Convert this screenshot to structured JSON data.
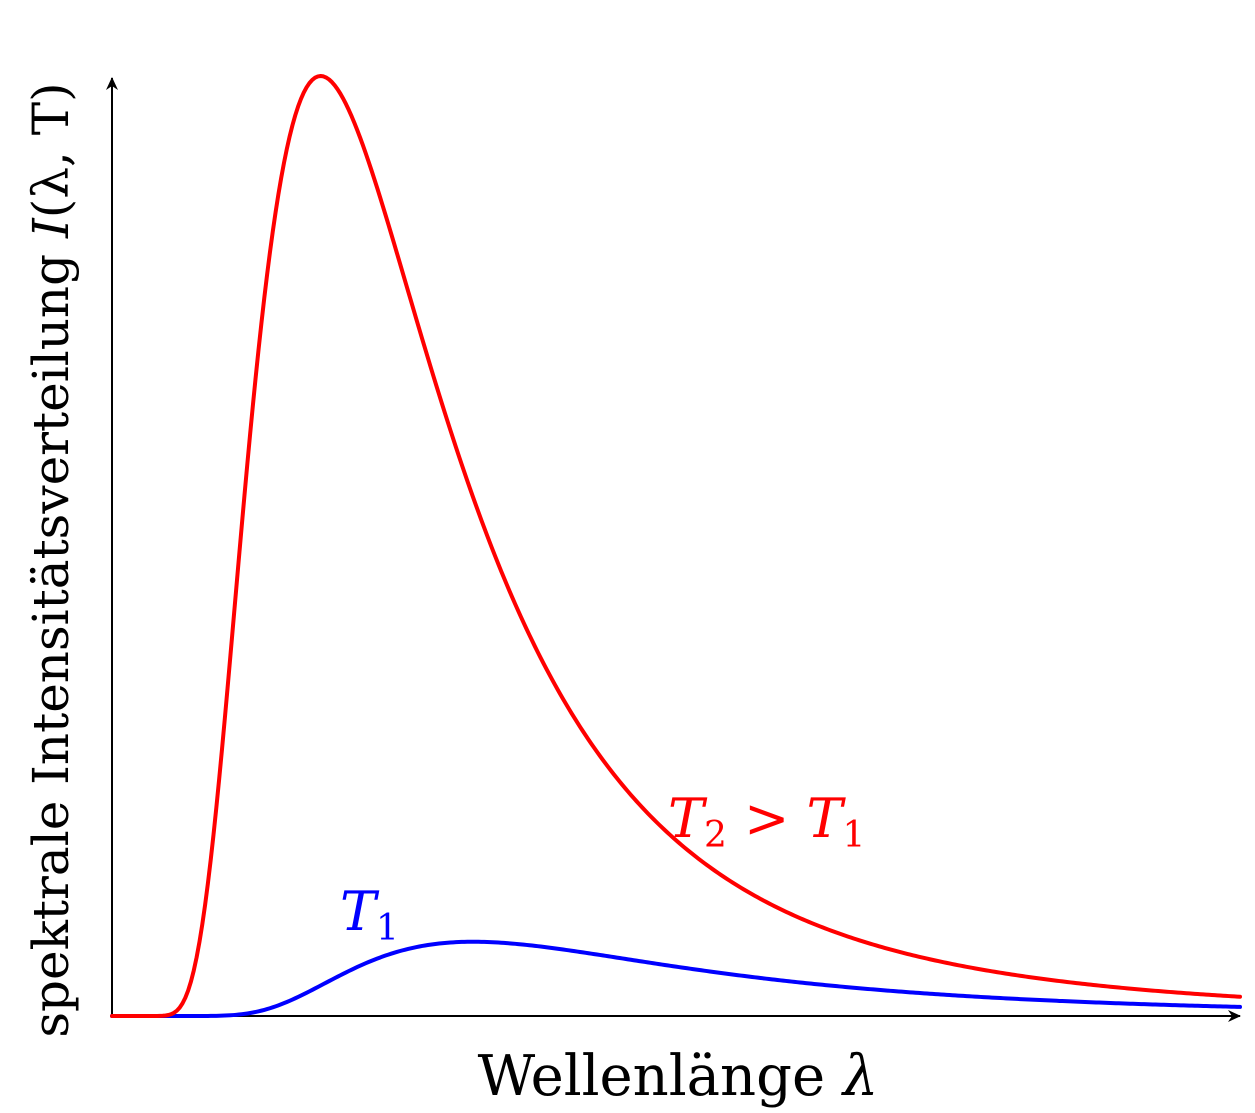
{
  "chart_data": {
    "type": "line",
    "title": "",
    "xlabel": {
      "text": "Wellenlänge",
      "symbol": "λ"
    },
    "ylabel": {
      "text": "spektrale Intensitätsverteilung",
      "symbol": "I",
      "args": "(λ, T)"
    },
    "xlim": [
      0,
      1
    ],
    "ylim": [
      0,
      1
    ],
    "grid": false,
    "ticks": "none",
    "series": [
      {
        "name": "T1",
        "label": {
          "main": "T",
          "sub": "1",
          "rest": ""
        },
        "color": "#0000ff",
        "peak_x": 0.32,
        "peak_y": 0.079,
        "tail_y": 0.008
      },
      {
        "name": "T2 > T1",
        "label": {
          "main": "T",
          "sub": "2",
          "rest": " > T",
          "rest_sub": "1"
        },
        "color": "#ff0000",
        "peak_x": 0.185,
        "peak_y": 1.0,
        "tail_y": 0.017
      }
    ]
  }
}
